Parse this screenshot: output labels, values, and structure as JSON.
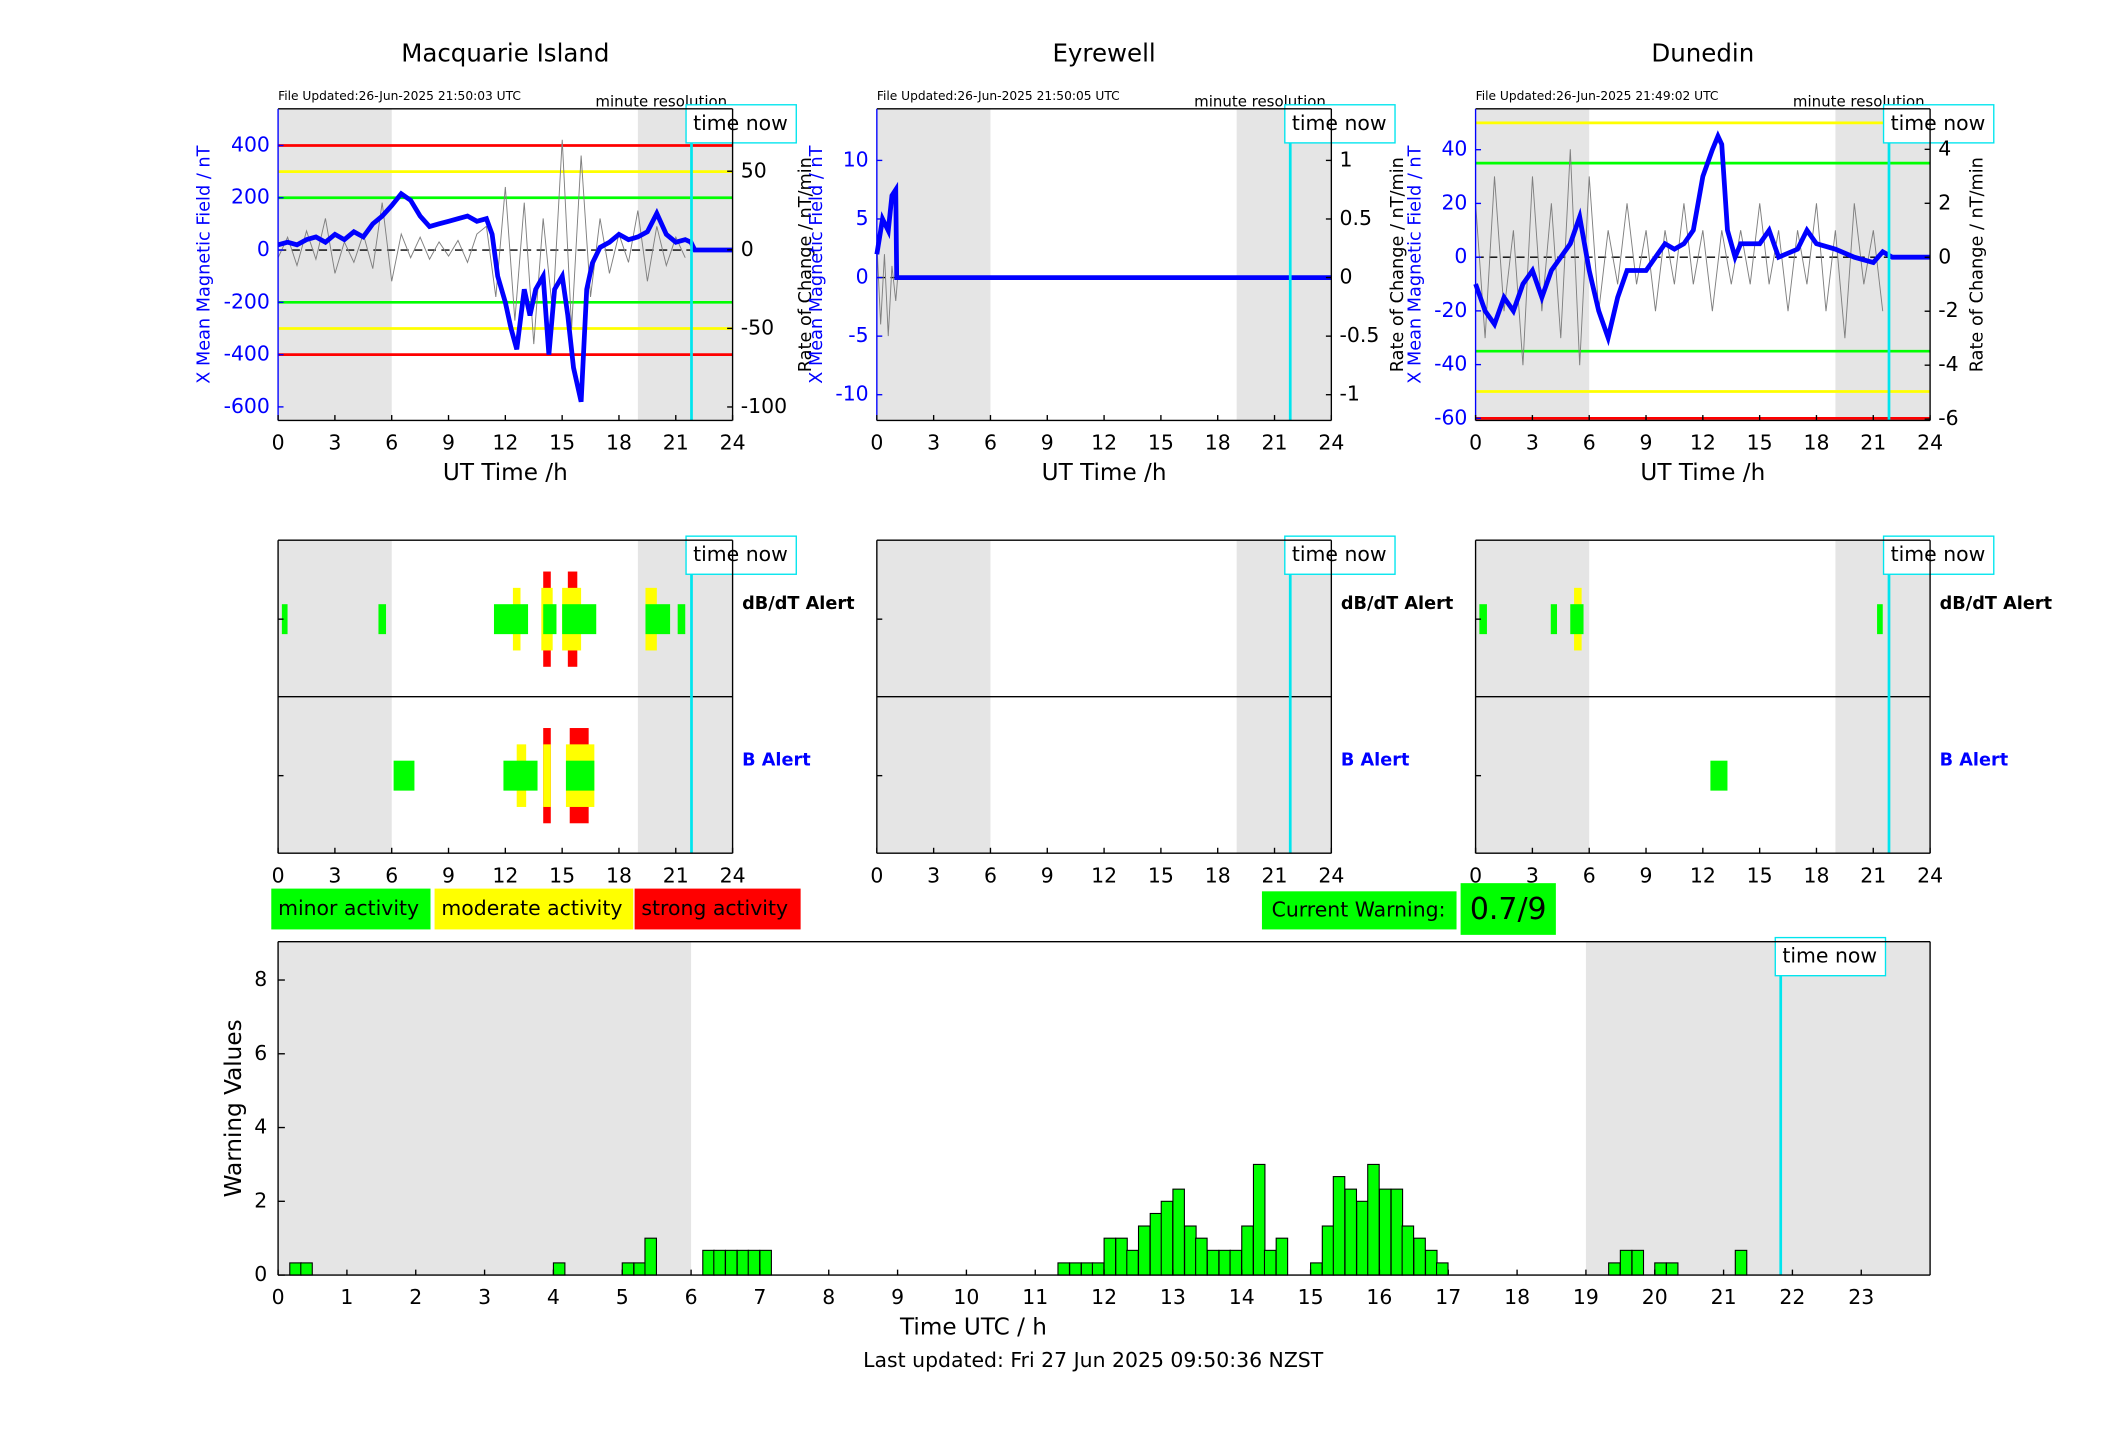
{
  "chart_data": [
    {
      "type": "line",
      "title": "Macquarie Island",
      "file_updated": "File Updated:26-Jun-2025 21:50:03 UTC",
      "resolution": "minute resolution",
      "time_now_label": "time now",
      "time_now": 21.83,
      "xlabel": "UT Time /h",
      "ylabel": "X Mean Magnetic Field / nT",
      "y2label": "Rate of Change / nT/min",
      "xlim": [
        0,
        24
      ],
      "xticks": [
        0,
        3,
        6,
        9,
        12,
        15,
        18,
        21,
        24
      ],
      "ylim": [
        -652,
        540
      ],
      "yticks": [
        -600,
        -400,
        -200,
        0,
        200,
        400
      ],
      "y2lim": [
        -108.6,
        89.7
      ],
      "y2ticks": [
        -100,
        -50,
        0,
        50
      ],
      "shaded": [
        [
          0,
          6
        ],
        [
          19,
          24
        ]
      ],
      "thresholds": [
        {
          "value": 400,
          "color": "#ff0000"
        },
        {
          "value": 300,
          "color": "#ffff00"
        },
        {
          "value": 200,
          "color": "#00ff00"
        },
        {
          "value": -200,
          "color": "#00ff00"
        },
        {
          "value": -300,
          "color": "#ffff00"
        },
        {
          "value": -400,
          "color": "#ff0000"
        }
      ],
      "series": [
        {
          "color": "#808080",
          "axis": "y2",
          "x": [
            0,
            0.5,
            1,
            1.5,
            2,
            2.5,
            3,
            3.5,
            4,
            4.5,
            5,
            5.5,
            6,
            6.5,
            7,
            7.5,
            8,
            8.5,
            9,
            9.5,
            10,
            10.5,
            11,
            11.5,
            12,
            12.5,
            13,
            13.5,
            14,
            14.5,
            15,
            15.5,
            16,
            16.5,
            17,
            17.5,
            18,
            18.5,
            19,
            19.5,
            20,
            20.5,
            21,
            21.5
          ],
          "values": [
            -5,
            8,
            -10,
            12,
            -6,
            20,
            -15,
            5,
            -8,
            10,
            -12,
            30,
            -20,
            10,
            -5,
            8,
            -6,
            5,
            -4,
            6,
            -8,
            10,
            15,
            -30,
            40,
            -45,
            30,
            -60,
            20,
            -40,
            70,
            -50,
            60,
            -30,
            20,
            -15,
            10,
            -8,
            25,
            -20,
            15,
            -10,
            8,
            -5
          ]
        },
        {
          "color": "#0000ff",
          "axis": "y",
          "x": [
            0,
            0.5,
            1,
            1.5,
            2,
            2.5,
            3,
            3.5,
            4,
            4.5,
            5,
            5.5,
            6,
            6.5,
            7,
            7.5,
            8,
            8.5,
            9,
            9.5,
            10,
            10.5,
            11,
            11.3,
            11.6,
            12,
            12.3,
            12.6,
            13,
            13.3,
            13.6,
            14,
            14.3,
            14.6,
            15,
            15.3,
            15.6,
            16,
            16.3,
            16.6,
            17,
            17.5,
            18,
            18.5,
            19,
            19.5,
            20,
            20.5,
            21,
            21.5,
            21.8,
            22,
            24
          ],
          "values": [
            20,
            30,
            20,
            40,
            50,
            30,
            60,
            40,
            70,
            50,
            100,
            130,
            170,
            215,
            190,
            130,
            90,
            100,
            110,
            120,
            130,
            110,
            120,
            60,
            -100,
            -200,
            -300,
            -380,
            -150,
            -250,
            -150,
            -100,
            -400,
            -150,
            -100,
            -250,
            -450,
            -580,
            -150,
            -50,
            10,
            30,
            60,
            40,
            50,
            70,
            140,
            60,
            30,
            40,
            30,
            0,
            0
          ]
        }
      ]
    },
    {
      "type": "line",
      "title": "Eyrewell",
      "file_updated": "File Updated:26-Jun-2025 21:50:05 UTC",
      "resolution": "minute resolution",
      "time_now_label": "time now",
      "time_now": 21.83,
      "xlabel": "UT Time /h",
      "ylabel": "X Mean Magnetic Field / nT",
      "y2label": "Rate of Change / nT/min",
      "xlim": [
        0,
        24
      ],
      "xticks": [
        0,
        3,
        6,
        9,
        12,
        15,
        18,
        21,
        24
      ],
      "ylim": [
        -12.2,
        14.4
      ],
      "yticks": [
        -10,
        -5,
        0,
        5,
        10
      ],
      "y2lim": [
        -1.22,
        1.44
      ],
      "y2ticks": [
        -1,
        {
          "value": -0.5,
          "label": "-0.5"
        },
        0,
        0.5,
        1
      ],
      "shaded": [
        [
          0,
          6
        ],
        [
          19,
          24
        ]
      ],
      "thresholds": [],
      "series": [
        {
          "color": "#808080",
          "axis": "y2",
          "x": [
            0,
            0.2,
            0.4,
            0.6,
            0.8,
            1,
            1.1,
            24
          ],
          "values": [
            0.3,
            -0.4,
            0.2,
            -0.5,
            0.1,
            -0.2,
            0,
            0
          ]
        },
        {
          "color": "#0000ff",
          "axis": "y",
          "x": [
            0,
            0.3,
            0.6,
            0.8,
            1,
            1.05,
            24
          ],
          "values": [
            2,
            5,
            4,
            7,
            7.5,
            0,
            0
          ]
        }
      ]
    },
    {
      "type": "line",
      "title": "Dunedin",
      "file_updated": "File Updated:26-Jun-2025 21:49:02 UTC",
      "resolution": "minute resolution",
      "time_now_label": "time now",
      "time_now": 21.83,
      "xlabel": "UT Time /h",
      "ylabel": "X Mean Magnetic Field / nT",
      "y2label": "Rate of Change / nT/min",
      "xlim": [
        0,
        24
      ],
      "xticks": [
        0,
        3,
        6,
        9,
        12,
        15,
        18,
        21,
        24
      ],
      "ylim": [
        -60.8,
        55.2
      ],
      "yticks": [
        -60,
        -40,
        -20,
        0,
        20,
        40
      ],
      "y2lim": [
        -6.05,
        5.5
      ],
      "y2ticks": [
        -6,
        -4,
        -2,
        0,
        2,
        4
      ],
      "shaded": [
        [
          0,
          6
        ],
        [
          19,
          24
        ]
      ],
      "thresholds": [
        {
          "value": 50,
          "color": "#ffff00"
        },
        {
          "value": 35,
          "color": "#00ff00"
        },
        {
          "value": -35,
          "color": "#00ff00"
        },
        {
          "value": -50,
          "color": "#ffff00"
        },
        {
          "value": -60,
          "color": "#ff0000"
        }
      ],
      "series": [
        {
          "color": "#808080",
          "axis": "y2",
          "x": [
            0,
            0.5,
            1,
            1.5,
            2,
            2.5,
            3,
            3.5,
            4,
            4.5,
            5,
            5.5,
            6,
            6.5,
            7,
            7.5,
            8,
            8.5,
            9,
            9.5,
            10,
            10.5,
            11,
            11.5,
            12,
            12.5,
            13,
            13.5,
            14,
            14.5,
            15,
            15.5,
            16,
            16.5,
            17,
            17.5,
            18,
            18.5,
            19,
            19.5,
            20,
            20.5,
            21,
            21.5
          ],
          "values": [
            2,
            -3,
            3,
            -2,
            1,
            -4,
            3,
            -2,
            2,
            -3,
            4,
            -4,
            3,
            -2,
            1,
            -1,
            2,
            -1,
            1,
            -2,
            1,
            -1,
            2,
            -1,
            1,
            -2,
            1,
            -1,
            1,
            -1,
            2,
            -1,
            1,
            -2,
            1,
            -1,
            2,
            -2,
            1,
            -3,
            2,
            -1,
            1,
            -2
          ]
        },
        {
          "color": "#0000ff",
          "axis": "y",
          "x": [
            0,
            0.5,
            1,
            1.5,
            2,
            2.5,
            3,
            3.5,
            4,
            4.5,
            5,
            5.5,
            6,
            6.5,
            7,
            7.5,
            8,
            9,
            9.5,
            10,
            10.5,
            11,
            11.5,
            12,
            12.5,
            12.8,
            13,
            13.3,
            13.7,
            14,
            15,
            15.5,
            16,
            17,
            17.5,
            18,
            19,
            20,
            21,
            21.5,
            22,
            24
          ],
          "values": [
            -10,
            -20,
            -25,
            -15,
            -20,
            -10,
            -5,
            -15,
            -5,
            0,
            5,
            15,
            -5,
            -20,
            -30,
            -15,
            -5,
            -5,
            0,
            5,
            3,
            5,
            10,
            30,
            40,
            45,
            42,
            10,
            0,
            5,
            5,
            10,
            0,
            3,
            10,
            5,
            3,
            0,
            -2,
            2,
            0,
            0
          ]
        }
      ]
    },
    {
      "type": "alert",
      "time_now_label": "time now",
      "time_now": 21.83,
      "xlim": [
        0,
        24
      ],
      "xticks": [
        0,
        3,
        6,
        9,
        12,
        15,
        18,
        21,
        24
      ],
      "shaded": [
        [
          0,
          6
        ],
        [
          19,
          24
        ]
      ],
      "rows": [
        {
          "name": "dB/dT Alert",
          "color": "#000000",
          "bars": [
            {
              "start": 0.2,
              "end": 0.5,
              "level": 1
            },
            {
              "start": 5.3,
              "end": 5.7,
              "level": 1
            },
            {
              "start": 12.4,
              "end": 12.8,
              "level": 2
            },
            {
              "start": 11.4,
              "end": 13.2,
              "level": 1
            },
            {
              "start": 14.0,
              "end": 14.4,
              "level": 3
            },
            {
              "start": 13.9,
              "end": 14.5,
              "level": 2
            },
            {
              "start": 14.0,
              "end": 14.7,
              "level": 1
            },
            {
              "start": 15.3,
              "end": 15.8,
              "level": 3
            },
            {
              "start": 15.0,
              "end": 16.0,
              "level": 2
            },
            {
              "start": 15.0,
              "end": 16.8,
              "level": 1
            },
            {
              "start": 19.4,
              "end": 20.0,
              "level": 2
            },
            {
              "start": 19.4,
              "end": 20.7,
              "level": 1
            },
            {
              "start": 21.1,
              "end": 21.5,
              "level": 1
            }
          ]
        },
        {
          "name": "B Alert",
          "color": "#0000ff",
          "bars": [
            {
              "start": 6.1,
              "end": 7.2,
              "level": 1
            },
            {
              "start": 12.6,
              "end": 13.1,
              "level": 2
            },
            {
              "start": 11.9,
              "end": 13.7,
              "level": 1
            },
            {
              "start": 14.0,
              "end": 14.4,
              "level": 3
            },
            {
              "start": 14.0,
              "end": 14.4,
              "level": 2
            },
            {
              "start": 15.4,
              "end": 16.4,
              "level": 3
            },
            {
              "start": 15.2,
              "end": 16.7,
              "level": 2
            },
            {
              "start": 15.2,
              "end": 16.7,
              "level": 1
            }
          ]
        }
      ]
    },
    {
      "type": "alert",
      "time_now_label": "time now",
      "time_now": 21.83,
      "xlim": [
        0,
        24
      ],
      "xticks": [
        0,
        3,
        6,
        9,
        12,
        15,
        18,
        21,
        24
      ],
      "shaded": [
        [
          0,
          6
        ],
        [
          19,
          24
        ]
      ],
      "rows": [
        {
          "name": "dB/dT Alert",
          "color": "#000000",
          "bars": []
        },
        {
          "name": "B Alert",
          "color": "#0000ff",
          "bars": []
        }
      ]
    },
    {
      "type": "alert",
      "time_now_label": "time now",
      "time_now": 21.83,
      "xlim": [
        0,
        24
      ],
      "xticks": [
        0,
        3,
        6,
        9,
        12,
        15,
        18,
        21,
        24
      ],
      "shaded": [
        [
          0,
          6
        ],
        [
          19,
          24
        ]
      ],
      "rows": [
        {
          "name": "dB/dT Alert",
          "color": "#000000",
          "bars": [
            {
              "start": 0.2,
              "end": 0.6,
              "level": 1
            },
            {
              "start": 3.97,
              "end": 4.3,
              "level": 1
            },
            {
              "start": 5.2,
              "end": 5.6,
              "level": 2
            },
            {
              "start": 5.0,
              "end": 5.7,
              "level": 1
            },
            {
              "start": 21.2,
              "end": 21.5,
              "level": 1
            }
          ]
        },
        {
          "name": "B Alert",
          "color": "#0000ff",
          "bars": [
            {
              "start": 12.4,
              "end": 13.3,
              "level": 1
            }
          ]
        }
      ]
    },
    {
      "type": "bar",
      "time_now_label": "time now",
      "time_now": 21.83,
      "xlabel": "Time UTC / h",
      "ylabel": "Warning Values",
      "footer": "Last updated: Fri 27 Jun 2025 09:50:36 NZST",
      "color": "#00ff00",
      "xlim": [
        0,
        24
      ],
      "xticks": [
        0,
        1,
        2,
        3,
        4,
        5,
        6,
        7,
        8,
        9,
        10,
        11,
        12,
        13,
        14,
        15,
        16,
        17,
        18,
        19,
        20,
        21,
        22,
        23
      ],
      "ylim": [
        0,
        9.04
      ],
      "yticks": [
        0,
        2,
        4,
        6,
        8
      ],
      "shaded": [
        [
          0,
          6
        ],
        [
          19,
          24
        ]
      ],
      "x": [
        0.17,
        0.33,
        4,
        5,
        5.17,
        5.33,
        6.17,
        6.33,
        6.5,
        6.67,
        6.83,
        7,
        11.33,
        11.5,
        11.67,
        11.83,
        12,
        12.17,
        12.33,
        12.5,
        12.67,
        12.83,
        13,
        13.17,
        13.33,
        13.5,
        13.67,
        13.83,
        14,
        14.17,
        14.33,
        14.5,
        15,
        15.17,
        15.33,
        15.5,
        15.67,
        15.83,
        16,
        16.17,
        16.33,
        16.5,
        16.67,
        16.83,
        19.33,
        19.5,
        19.67,
        20,
        20.17,
        21.17
      ],
      "values": [
        0.33,
        0.33,
        0.33,
        0.33,
        0.33,
        1,
        0.67,
        0.67,
        0.67,
        0.67,
        0.67,
        0.67,
        0.33,
        0.33,
        0.33,
        0.33,
        1,
        1,
        0.67,
        1.33,
        1.67,
        2,
        2.33,
        1.33,
        1,
        0.67,
        0.67,
        0.67,
        1.33,
        3,
        0.67,
        1,
        0.33,
        1.33,
        2.67,
        2.33,
        2,
        3,
        2.33,
        2.33,
        1.33,
        1,
        0.67,
        0.33,
        0.33,
        0.67,
        0.67,
        0.33,
        0.33,
        0.67
      ]
    }
  ],
  "legend": [
    {
      "label": "minor activity",
      "color": "#00ff00"
    },
    {
      "label": "moderate activity",
      "color": "#ffff00"
    },
    {
      "label": "strong activity",
      "color": "#ff0000"
    }
  ],
  "current_warning": {
    "label": "Current Warning:",
    "value": "0.7/9"
  }
}
